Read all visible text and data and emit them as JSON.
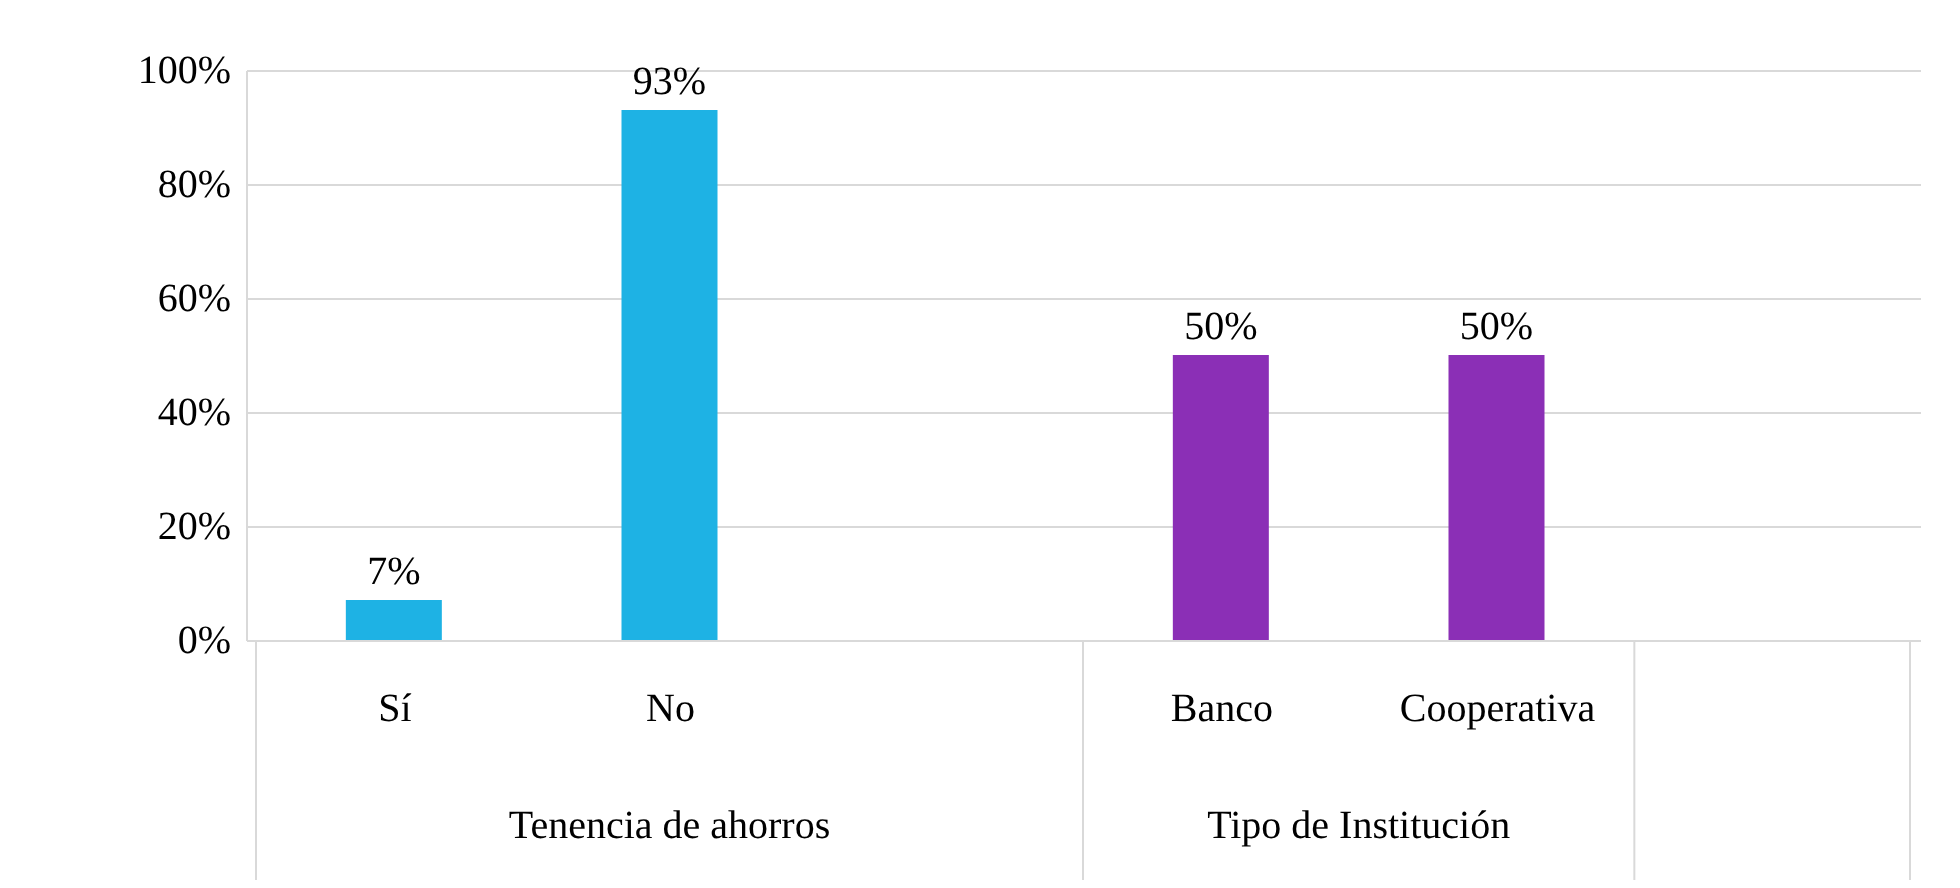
{
  "chart_data": {
    "type": "bar",
    "categories": [
      "Sí",
      "No",
      null,
      "Banco",
      "Cooperativa",
      null
    ],
    "series": [
      {
        "color": "#1eb2e4",
        "values": [
          7,
          93,
          null,
          null,
          null,
          null
        ],
        "value_labels": [
          "7%",
          "93%",
          null,
          null,
          null,
          null
        ]
      },
      {
        "color": "#8b2fb6",
        "values": [
          null,
          null,
          null,
          50,
          50,
          null
        ],
        "value_labels": [
          null,
          null,
          null,
          "50%",
          "50%",
          null
        ]
      }
    ],
    "annotations": [
      "Tenencia de ahorros",
      "Tipo de Institución"
    ],
    "ylim": [
      0,
      100
    ],
    "yticks": [
      {
        "value": 0,
        "label": "0%"
      },
      {
        "value": 20,
        "label": "20%"
      },
      {
        "value": 40,
        "label": "40%"
      },
      {
        "value": 60,
        "label": "60%"
      },
      {
        "value": 80,
        "label": "80%"
      },
      {
        "value": 100,
        "label": "100%"
      }
    ],
    "grid": "y"
  }
}
